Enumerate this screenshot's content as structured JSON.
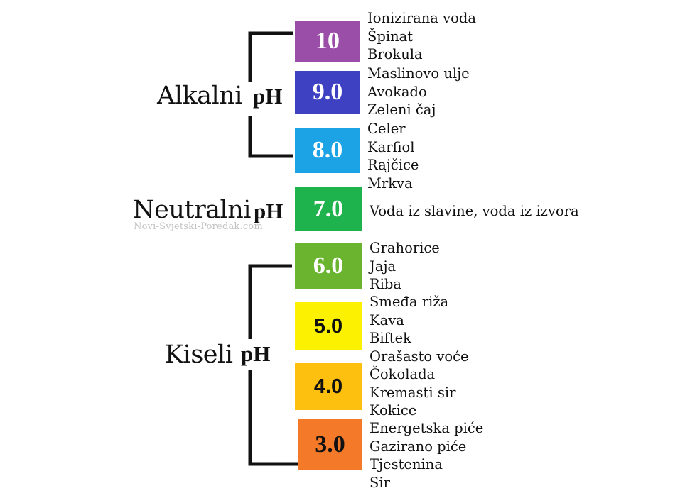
{
  "groups": {
    "alkaline": {
      "label": "Alkalni",
      "ph": "pH"
    },
    "neutral": {
      "label": "Neutralni",
      "ph": "pH"
    },
    "acidic": {
      "label": "Kiseli",
      "ph": "pH"
    }
  },
  "watermark": "Novi-Svjetski-Poredak.com",
  "levels": [
    {
      "value": "10",
      "color": "#9b4ea8",
      "items": [
        "Ionizirana voda",
        "Špinat",
        "Brokula"
      ]
    },
    {
      "value": "9.0",
      "color": "#3e41c2",
      "items": [
        "Maslinovo ulje",
        "Avokado",
        "Zeleni čaj"
      ]
    },
    {
      "value": "8.0",
      "color": "#1ba3e6",
      "items": [
        "Celer",
        "Karfiol",
        "Rajčice",
        "Mrkva"
      ]
    },
    {
      "value": "7.0",
      "color": "#1fb34e",
      "items": [
        "Voda iz slavine, voda iz izvora"
      ]
    },
    {
      "value": "6.0",
      "color": "#6ab42f",
      "items": [
        "Grahorice",
        "Jaja",
        "Riba"
      ]
    },
    {
      "value": "5.0",
      "color": "#fbf100",
      "items": [
        "Smeđa riža",
        "Kava",
        "Biftek",
        "Orašasto voće"
      ]
    },
    {
      "value": "4.0",
      "color": "#fdc00f",
      "items": [
        "Čokolada",
        "Kremasti sir",
        "Kokice"
      ]
    },
    {
      "value": "3.0",
      "color": "#f47a2a",
      "items": [
        "Energetska piće",
        "Gazirano piće",
        "Tjestenina",
        "Sir"
      ]
    }
  ]
}
